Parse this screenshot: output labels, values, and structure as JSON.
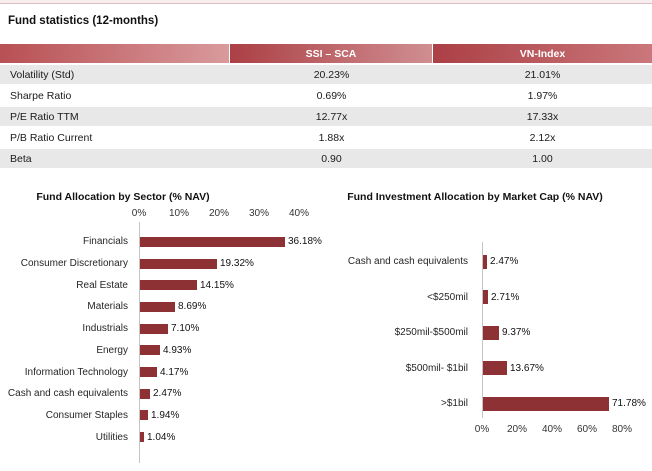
{
  "page": {
    "section_title": "Fund statistics (12-months)"
  },
  "colors": {
    "bar": "#8e3134",
    "header_gradient_start": "#ab4045",
    "header_gradient_end": "#d09093",
    "row_stripe": "#e9e8e8",
    "header_text": "#ffffff"
  },
  "table": {
    "header": {
      "col1": "",
      "col2": "SSI – SCA",
      "col3": "VN-Index"
    },
    "rows": [
      {
        "label": "Volatility (Std)",
        "ssi": "20.23%",
        "vn": "21.01%"
      },
      {
        "label": "Sharpe Ratio",
        "ssi": "0.69%",
        "vn": "1.97%"
      },
      {
        "label": "P/E Ratio TTM",
        "ssi": "12.77x",
        "vn": "17.33x"
      },
      {
        "label": "P/B Ratio Current",
        "ssi": "1.88x",
        "vn": "2.12x"
      },
      {
        "label": "Beta",
        "ssi": "0.90",
        "vn": "1.00"
      }
    ]
  },
  "chart_data": [
    {
      "type": "bar",
      "orientation": "horizontal",
      "title": "Fund Allocation by Sector (% NAV)",
      "categories": [
        "Financials",
        "Consumer Discretionary",
        "Real Estate",
        "Materials",
        "Industrials",
        "Energy",
        "Information Technology",
        "Cash and cash equivalents",
        "Consumer Staples",
        "Utilities"
      ],
      "values": [
        36.18,
        19.32,
        14.15,
        8.69,
        7.1,
        4.93,
        4.17,
        2.47,
        1.94,
        1.04
      ],
      "data_labels": [
        "36.18%",
        "19.32%",
        "14.15%",
        "8.69%",
        "7.10%",
        "4.93%",
        "4.17%",
        "2.47%",
        "1.94%",
        "1.04%"
      ],
      "xlabel": "",
      "ylabel": "",
      "axis": {
        "position": "top",
        "ticks": [
          "0%",
          "10%",
          "20%",
          "30%",
          "40%"
        ],
        "min": 0,
        "max": 40
      },
      "grid": false,
      "legend": false,
      "bar_color": "#8e3134"
    },
    {
      "type": "bar",
      "orientation": "horizontal",
      "title": "Fund Investment Allocation by Market Cap (% NAV)",
      "categories": [
        "Cash and cash equivalents",
        "<$250mil",
        "$250mil-$500mil",
        "$500mil- $1bil",
        ">$1bil"
      ],
      "values": [
        2.47,
        2.71,
        9.37,
        13.67,
        71.78
      ],
      "data_labels": [
        "2.47%",
        "2.71%",
        "9.37%",
        "13.67%",
        "71.78%"
      ],
      "xlabel": "",
      "ylabel": "",
      "axis": {
        "position": "bottom",
        "ticks": [
          "0%",
          "20%",
          "40%",
          "60%",
          "80%"
        ],
        "min": 0,
        "max": 80
      },
      "grid": false,
      "legend": false,
      "bar_color": "#8e3134"
    }
  ]
}
